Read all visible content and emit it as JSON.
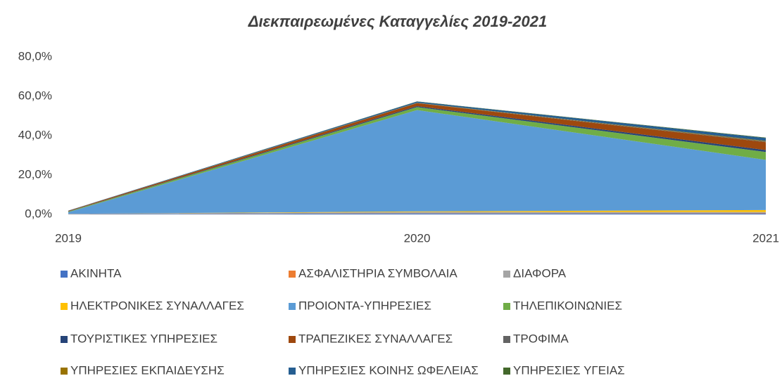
{
  "chart_data": {
    "type": "stacked_area",
    "title": "Διεκπαιρεωμένες Καταγγελίες 2019-2021",
    "categories": [
      "2019",
      "2020",
      "2021"
    ],
    "ylim": [
      0,
      80
    ],
    "yticks": [
      {
        "value": 0,
        "label": "0,0%"
      },
      {
        "value": 20,
        "label": "20,0%"
      },
      {
        "value": 40,
        "label": "40,0%"
      },
      {
        "value": 60,
        "label": "60,0%"
      },
      {
        "value": 80,
        "label": "80,0%"
      }
    ],
    "grid": false,
    "legend": "bottom",
    "series": [
      {
        "name": "ΑΚΙΝΗΤΑ",
        "color": "#4472c4",
        "values": [
          0.1,
          0.5,
          0.5
        ]
      },
      {
        "name": "ΑΣΦΑΛΙΣΤΗΡΙΑ ΣΥΜΒΟΛΑΙΑ",
        "color": "#ed7d31",
        "values": [
          0,
          0.1,
          0.2
        ]
      },
      {
        "name": "ΔΙΑΦΟΡΑ",
        "color": "#a5a5a5",
        "values": [
          0.2,
          0.6,
          0.5
        ]
      },
      {
        "name": "ΗΛΕΚΤΡΟΝΙΚΕΣ ΣΥΝΑΛΛΑΓΕΣ",
        "color": "#ffc000",
        "values": [
          0,
          0.3,
          1.0
        ]
      },
      {
        "name": "ΠΡΟΙΟΝΤΑ-ΥΠΗΡΕΣΙΕΣ",
        "color": "#5b9bd5",
        "values": [
          0.8,
          51.5,
          25.5
        ]
      },
      {
        "name": "ΤΗΛΕΠΙΚΟΙΝΩΝΙΕΣ",
        "color": "#70ad47",
        "values": [
          0.3,
          1.5,
          4.0
        ]
      },
      {
        "name": "ΤΟΥΡΙΣΤΙΚΕΣ ΥΠΗΡΕΣΙΕΣ",
        "color": "#264478",
        "values": [
          0.1,
          0.5,
          1.0
        ]
      },
      {
        "name": "ΤΡΑΠΕΖΙΚΕΣ ΣΥΝΑΛΛΑΓΕΣ",
        "color": "#9e480e",
        "values": [
          0.3,
          1.5,
          4.0
        ]
      },
      {
        "name": "ΤΡΟΦΙΜΑ",
        "color": "#636363",
        "values": [
          0,
          0.1,
          0.3
        ]
      },
      {
        "name": "ΥΠΗΡΕΣΙΕΣ ΕΚΠΑΙΔΕΥΣΗΣ",
        "color": "#997300",
        "values": [
          0,
          0.1,
          0.3
        ]
      },
      {
        "name": "ΥΠΗΡΕΣΙΕΣ ΚΟΙΝΗΣ ΩΦΕΛΕΙΑΣ",
        "color": "#255e91",
        "values": [
          0.1,
          0.6,
          1.5
        ]
      },
      {
        "name": "ΥΠΗΡΕΣΙΕΣ ΥΓΕΙΑΣ",
        "color": "#43682b",
        "values": [
          0,
          0.1,
          0.2
        ]
      }
    ]
  }
}
